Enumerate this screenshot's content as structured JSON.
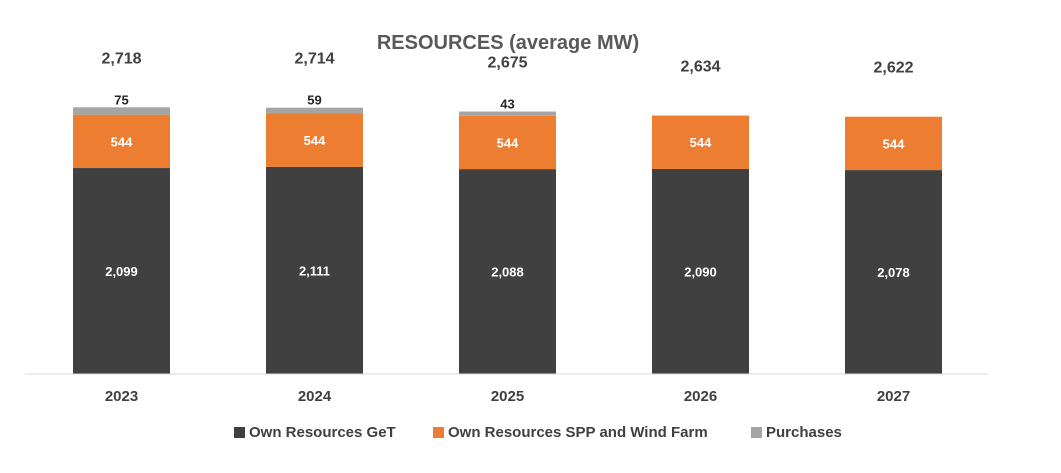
{
  "chart_data": {
    "type": "bar",
    "stacked": true,
    "title": "RESOURCES (average MW)",
    "categories": [
      "2023",
      "2024",
      "2025",
      "2026",
      "2027"
    ],
    "series": [
      {
        "name": "Own Resources GeT",
        "color": "#404040",
        "label_color": "#ffffff",
        "values": [
          2099,
          2111,
          2088,
          2090,
          2078
        ],
        "labels": [
          "2,099",
          "2,111",
          "2,088",
          "2,090",
          "2,078"
        ]
      },
      {
        "name": "Own Resources SPP and Wind Farm",
        "color": "#ed7d31",
        "label_color": "#ffffff",
        "values": [
          544,
          544,
          544,
          544,
          544
        ],
        "labels": [
          "544",
          "544",
          "544",
          "544",
          "544"
        ]
      },
      {
        "name": "Purchases",
        "color": "#a5a5a5",
        "label_color": "#262626",
        "values": [
          75,
          59,
          43,
          0,
          0
        ],
        "labels": [
          "75",
          "59",
          "43",
          "",
          ""
        ]
      }
    ],
    "totals": [
      "2,718",
      "2,714",
      "2,675",
      "2,634",
      "2,622"
    ],
    "ylim": [
      0,
      3200
    ],
    "grid": false,
    "legend_position": "bottom"
  }
}
